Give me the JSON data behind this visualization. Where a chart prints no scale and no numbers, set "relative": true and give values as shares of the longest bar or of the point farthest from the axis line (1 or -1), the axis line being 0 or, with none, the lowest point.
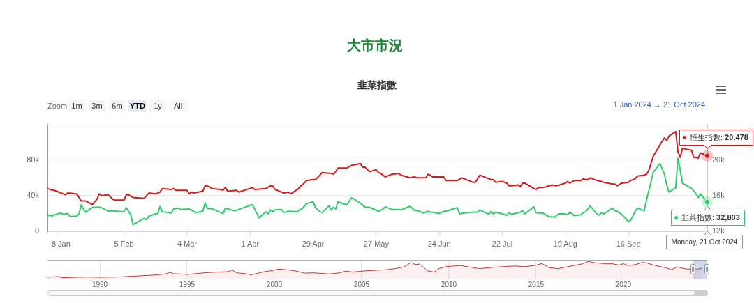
{
  "chart_data": [
    {
      "type": "line",
      "title": "大市市況",
      "subtitle": "韭菜指數",
      "xlim": [
        "2024-01-02",
        "2024-10-21"
      ],
      "xticks": [
        {
          "value": "2024-01-08",
          "label": "8 Jan"
        },
        {
          "value": "2024-02-05",
          "label": "5 Feb"
        },
        {
          "value": "2024-03-04",
          "label": "4 Mar"
        },
        {
          "value": "2024-04-01",
          "label": "1 Apr"
        },
        {
          "value": "2024-04-29",
          "label": "29 Apr"
        },
        {
          "value": "2024-05-27",
          "label": "27 May"
        },
        {
          "value": "2024-06-24",
          "label": "24 Jun"
        },
        {
          "value": "2024-07-22",
          "label": "22 Jul"
        },
        {
          "value": "2024-08-19",
          "label": "19 Aug"
        },
        {
          "value": "2024-09-16",
          "label": "16 Sep"
        }
      ],
      "ylim": [
        0,
        120000
      ],
      "yticks": [
        0,
        {
          "value": 40000,
          "label": "40k"
        },
        {
          "value": 80000,
          "label": "80k"
        }
      ],
      "y2lim": [
        12000,
        24000
      ],
      "y2ticks": [
        {
          "value": 12000,
          "label": "12k"
        },
        {
          "value": 16000,
          "label": "16k"
        },
        {
          "value": 20000,
          "label": "20k"
        }
      ],
      "grid": "y",
      "legend": "right",
      "series": [
        {
          "name": "恒生指數:",
          "color": "#d01c1c",
          "axis": "y2",
          "x": [
            "2024-01-02",
            "2024-01-03",
            "2024-01-05",
            "2024-01-08",
            "2024-01-10",
            "2024-01-11",
            "2024-01-15",
            "2024-01-17",
            "2024-01-18",
            "2024-01-19",
            "2024-01-22",
            "2024-01-24",
            "2024-01-25",
            "2024-01-26",
            "2024-01-29",
            "2024-01-31",
            "2024-02-01",
            "2024-02-05",
            "2024-02-06",
            "2024-02-07",
            "2024-02-09",
            "2024-02-14",
            "2024-02-15",
            "2024-02-16",
            "2024-02-19",
            "2024-02-21",
            "2024-02-22",
            "2024-02-26",
            "2024-02-27",
            "2024-02-28",
            "2024-03-04",
            "2024-03-05",
            "2024-03-06",
            "2024-03-07",
            "2024-03-11",
            "2024-03-12",
            "2024-03-14",
            "2024-03-15",
            "2024-03-19",
            "2024-03-20",
            "2024-03-21",
            "2024-03-22",
            "2024-03-26",
            "2024-03-27",
            "2024-04-02",
            "2024-04-03",
            "2024-04-08",
            "2024-04-10",
            "2024-04-11",
            "2024-04-12",
            "2024-04-16",
            "2024-04-18",
            "2024-04-19",
            "2024-04-22",
            "2024-04-24",
            "2024-04-25",
            "2024-04-26",
            "2024-04-29",
            "2024-04-30",
            "2024-05-02",
            "2024-05-03",
            "2024-05-07",
            "2024-05-08",
            "2024-05-09",
            "2024-05-10",
            "2024-05-14",
            "2024-05-16",
            "2024-05-20",
            "2024-05-21",
            "2024-05-22",
            "2024-05-24",
            "2024-05-27",
            "2024-05-28",
            "2024-05-29",
            "2024-05-31",
            "2024-06-03",
            "2024-06-06",
            "2024-06-07",
            "2024-06-11",
            "2024-06-13",
            "2024-06-14",
            "2024-06-18",
            "2024-06-19",
            "2024-06-20",
            "2024-06-21",
            "2024-06-26",
            "2024-06-27",
            "2024-07-02",
            "2024-07-04",
            "2024-07-05",
            "2024-07-09",
            "2024-07-10",
            "2024-07-12",
            "2024-07-16",
            "2024-07-17",
            "2024-07-18",
            "2024-07-19",
            "2024-07-22",
            "2024-07-24",
            "2024-07-25",
            "2024-07-26",
            "2024-07-29",
            "2024-07-30",
            "2024-07-31",
            "2024-08-01",
            "2024-08-05",
            "2024-08-06",
            "2024-08-07",
            "2024-08-09",
            "2024-08-12",
            "2024-08-13",
            "2024-08-15",
            "2024-08-19",
            "2024-08-20",
            "2024-08-21",
            "2024-08-23",
            "2024-08-26",
            "2024-08-27",
            "2024-08-28",
            "2024-08-29",
            "2024-08-30",
            "2024-09-02",
            "2024-09-04",
            "2024-09-05",
            "2024-09-09",
            "2024-09-10",
            "2024-09-11",
            "2024-09-13",
            "2024-09-16",
            "2024-09-17",
            "2024-09-19",
            "2024-09-20",
            "2024-09-23",
            "2024-09-24",
            "2024-09-25",
            "2024-09-26",
            "2024-09-27",
            "2024-09-30",
            "2024-10-02",
            "2024-10-03",
            "2024-10-04",
            "2024-10-07",
            "2024-10-08",
            "2024-10-09",
            "2024-10-10",
            "2024-10-14",
            "2024-10-15",
            "2024-10-16",
            "2024-10-17",
            "2024-10-18",
            "2024-10-21"
          ],
          "values": [
            16800,
            16700,
            16600,
            16300,
            16100,
            16300,
            16200,
            15400,
            15400,
            15400,
            15000,
            15600,
            16200,
            16000,
            16100,
            15600,
            15500,
            15500,
            16100,
            16100,
            15800,
            15700,
            16000,
            16300,
            16200,
            16400,
            16800,
            16700,
            16800,
            16600,
            16600,
            16200,
            16400,
            16300,
            16500,
            17100,
            17000,
            16800,
            16700,
            16600,
            16900,
            16500,
            16600,
            16400,
            16900,
            16700,
            16800,
            17100,
            17100,
            16700,
            16300,
            16400,
            16200,
            16700,
            17200,
            17400,
            17700,
            17800,
            17800,
            18300,
            18600,
            18500,
            18400,
            18700,
            19100,
            19100,
            19400,
            19600,
            19200,
            19200,
            18700,
            18900,
            18600,
            18500,
            18100,
            18400,
            18500,
            18300,
            18000,
            18100,
            18000,
            18000,
            18400,
            18300,
            18100,
            18100,
            17700,
            17700,
            18000,
            17900,
            17500,
            17500,
            18300,
            17900,
            17800,
            17800,
            17500,
            17600,
            17400,
            17100,
            17100,
            17200,
            17000,
            17400,
            17400,
            16800,
            16700,
            16900,
            16900,
            17100,
            17200,
            17100,
            17400,
            17600,
            17400,
            17700,
            17700,
            17900,
            17800,
            17800,
            18000,
            17700,
            17600,
            17500,
            17300,
            17300,
            17100,
            17400,
            17500,
            17700,
            17900,
            18200,
            18300,
            18400,
            18800,
            19600,
            20400,
            21700,
            22500,
            22200,
            22700,
            23200,
            20900,
            20300,
            21300,
            21100,
            20300,
            20300,
            20200,
            20800,
            20478
          ],
          "value_labels": [
            null,
            null,
            null,
            null,
            null,
            null,
            null,
            null,
            null,
            null,
            null,
            null,
            null,
            null,
            null,
            null,
            null,
            null,
            null,
            null,
            null,
            null,
            null,
            null,
            null,
            null,
            null,
            null,
            null,
            null,
            null,
            null,
            null,
            null,
            null,
            null,
            null,
            null,
            null,
            null,
            null,
            null,
            null,
            null,
            null,
            null,
            null,
            null,
            null,
            null,
            null,
            null,
            null,
            null,
            null,
            null,
            null,
            null,
            null,
            null,
            null,
            null,
            null,
            null,
            null,
            null,
            null,
            null,
            null,
            null,
            null,
            null,
            null,
            null,
            null,
            null,
            null,
            null,
            null,
            null,
            null,
            null,
            null,
            null,
            null,
            null,
            null,
            null,
            null,
            null,
            null,
            null,
            null,
            null,
            null,
            null,
            null,
            null,
            null,
            null,
            null,
            null,
            null,
            null,
            null,
            null,
            null,
            null,
            null,
            null,
            null,
            null,
            null,
            null,
            null,
            null,
            null,
            null,
            null,
            null,
            null,
            null,
            null,
            null,
            null,
            null,
            null,
            null,
            null,
            null,
            null,
            null,
            null,
            null,
            null,
            null,
            null,
            null,
            null,
            null,
            null,
            null,
            null,
            null,
            null,
            null,
            null,
            null,
            null,
            null,
            "20,478"
          ]
        },
        {
          "name": "韭菜指數:",
          "color": "#2fcc6b",
          "x": [
            "2024-01-02",
            "2024-01-03",
            "2024-01-04",
            "2024-01-05",
            "2024-01-08",
            "2024-01-09",
            "2024-01-11",
            "2024-01-12",
            "2024-01-15",
            "2024-01-16",
            "2024-01-17",
            "2024-01-18",
            "2024-01-19",
            "2024-01-22",
            "2024-01-24",
            "2024-01-25",
            "2024-01-26",
            "2024-01-29",
            "2024-01-31",
            "2024-02-02",
            "2024-02-05",
            "2024-02-06",
            "2024-02-07",
            "2024-02-08",
            "2024-02-09",
            "2024-02-14",
            "2024-02-15",
            "2024-02-16",
            "2024-02-19",
            "2024-02-20",
            "2024-02-21",
            "2024-02-22",
            "2024-02-26",
            "2024-02-27",
            "2024-02-29",
            "2024-03-01",
            "2024-03-05",
            "2024-03-06",
            "2024-03-08",
            "2024-03-11",
            "2024-03-12",
            "2024-03-13",
            "2024-03-15",
            "2024-03-18",
            "2024-03-20",
            "2024-03-21",
            "2024-03-25",
            "2024-03-27",
            "2024-04-02",
            "2024-04-03",
            "2024-04-05",
            "2024-04-08",
            "2024-04-09",
            "2024-04-10",
            "2024-04-11",
            "2024-04-12",
            "2024-04-15",
            "2024-04-16",
            "2024-04-18",
            "2024-04-22",
            "2024-04-23",
            "2024-04-24",
            "2024-04-26",
            "2024-04-29",
            "2024-04-30",
            "2024-05-02",
            "2024-05-03",
            "2024-05-06",
            "2024-05-07",
            "2024-05-08",
            "2024-05-09",
            "2024-05-10",
            "2024-05-14",
            "2024-05-16",
            "2024-05-17",
            "2024-05-20",
            "2024-05-22",
            "2024-05-24",
            "2024-05-28",
            "2024-05-30",
            "2024-05-31",
            "2024-06-03",
            "2024-06-06",
            "2024-06-07",
            "2024-06-11",
            "2024-06-13",
            "2024-06-14",
            "2024-06-17",
            "2024-06-19",
            "2024-06-20",
            "2024-06-21",
            "2024-06-24",
            "2024-06-26",
            "2024-06-27",
            "2024-07-02",
            "2024-07-03",
            "2024-07-05",
            "2024-07-09",
            "2024-07-11",
            "2024-07-12",
            "2024-07-16",
            "2024-07-17",
            "2024-07-18",
            "2024-07-19",
            "2024-07-22",
            "2024-07-24",
            "2024-07-25",
            "2024-07-26",
            "2024-07-30",
            "2024-07-31",
            "2024-08-01",
            "2024-08-05",
            "2024-08-06",
            "2024-08-07",
            "2024-08-09",
            "2024-08-12",
            "2024-08-13",
            "2024-08-14",
            "2024-08-16",
            "2024-08-19",
            "2024-08-20",
            "2024-08-21",
            "2024-08-23",
            "2024-08-26",
            "2024-08-27",
            "2024-08-28",
            "2024-08-30",
            "2024-09-02",
            "2024-09-03",
            "2024-09-04",
            "2024-09-05",
            "2024-09-09",
            "2024-09-10",
            "2024-09-11",
            "2024-09-13",
            "2024-09-16",
            "2024-09-17",
            "2024-09-19",
            "2024-09-20",
            "2024-09-23",
            "2024-09-24",
            "2024-09-25",
            "2024-09-26",
            "2024-09-27",
            "2024-09-30",
            "2024-10-02",
            "2024-10-03",
            "2024-10-04",
            "2024-10-07",
            "2024-10-08",
            "2024-10-09",
            "2024-10-10",
            "2024-10-14",
            "2024-10-15",
            "2024-10-16",
            "2024-10-17",
            "2024-10-18",
            "2024-10-21"
          ],
          "values": [
            17000,
            18500,
            17000,
            18500,
            20500,
            19000,
            20000,
            16500,
            17000,
            19500,
            30000,
            24500,
            21500,
            27000,
            27000,
            27000,
            26500,
            22500,
            23000,
            22500,
            22000,
            26500,
            22500,
            18500,
            7500,
            14500,
            13000,
            17000,
            19500,
            20000,
            28000,
            22000,
            20500,
            25000,
            26000,
            24500,
            25000,
            23500,
            21000,
            22500,
            32000,
            25500,
            25500,
            22000,
            20000,
            26000,
            23000,
            24500,
            30000,
            25000,
            15000,
            22000,
            19500,
            24000,
            22000,
            24000,
            24500,
            21000,
            22500,
            22000,
            24500,
            25000,
            31000,
            33000,
            26500,
            22000,
            21000,
            28500,
            24000,
            27000,
            25000,
            33000,
            29500,
            37500,
            36500,
            31500,
            27000,
            27000,
            22500,
            25000,
            27500,
            24500,
            24500,
            24000,
            28000,
            23500,
            23500,
            20500,
            22500,
            21500,
            21500,
            20000,
            22500,
            22500,
            26500,
            19500,
            20500,
            21500,
            21500,
            24000,
            19000,
            22500,
            19500,
            21500,
            19500,
            18000,
            21000,
            19000,
            21500,
            23500,
            19500,
            27500,
            21000,
            20500,
            20500,
            16000,
            16500,
            15500,
            19500,
            19500,
            18500,
            21500,
            17500,
            18500,
            21000,
            22000,
            28500,
            19500,
            18000,
            21000,
            19500,
            26000,
            23000,
            22500,
            19000,
            11000,
            12500,
            22500,
            26000,
            23000,
            35000,
            45000,
            55000,
            66000,
            76000,
            64000,
            52000,
            44000,
            49000,
            82000,
            69000,
            54000,
            48000,
            45500,
            42000,
            38000,
            42000,
            32803
          ],
          "value_labels": [
            null,
            null,
            null,
            null,
            null,
            null,
            null,
            null,
            null,
            null,
            null,
            null,
            null,
            null,
            null,
            null,
            null,
            null,
            null,
            null,
            null,
            null,
            null,
            null,
            null,
            null,
            null,
            null,
            null,
            null,
            null,
            null,
            null,
            null,
            null,
            null,
            null,
            null,
            null,
            null,
            null,
            null,
            null,
            null,
            null,
            null,
            null,
            null,
            null,
            null,
            null,
            null,
            null,
            null,
            null,
            null,
            null,
            null,
            null,
            null,
            null,
            null,
            null,
            null,
            null,
            null,
            null,
            null,
            null,
            null,
            null,
            null,
            null,
            null,
            null,
            null,
            null,
            null,
            null,
            null,
            null,
            null,
            null,
            null,
            null,
            null,
            null,
            null,
            null,
            null,
            null,
            null,
            null,
            null,
            null,
            null,
            null,
            null,
            null,
            null,
            null,
            null,
            null,
            null,
            null,
            null,
            null,
            null,
            null,
            null,
            null,
            null,
            null,
            null,
            null,
            null,
            null,
            null,
            null,
            null,
            null,
            null,
            null,
            null,
            null,
            null,
            null,
            null,
            null,
            null,
            null,
            null,
            null,
            null,
            null,
            null,
            null,
            null,
            null,
            null,
            null,
            null,
            null,
            null,
            null,
            null,
            null,
            null,
            null,
            null,
            null,
            null,
            null,
            null,
            null,
            null,
            null,
            "32,803"
          ]
        }
      ],
      "annotations": [
        "Zoom",
        "1m",
        "3m",
        "6m",
        "YTD",
        "1y",
        "All",
        "1 Jan 2024 → 21 Oct 2024",
        "Monday, 21 Oct 2024"
      ]
    },
    {
      "type": "area",
      "relative": true,
      "color": "#cc3333",
      "grid": "x",
      "xlim": [
        "1987-01-01",
        "2024-10-21"
      ],
      "xticks": [
        {
          "value": "1990",
          "label": "1990"
        },
        {
          "value": "1995",
          "label": "1995"
        },
        {
          "value": "2000",
          "label": "2000"
        },
        {
          "value": "2005",
          "label": "2005"
        },
        {
          "value": "2010",
          "label": "2010"
        },
        {
          "value": "2015",
          "label": "2015"
        },
        {
          "value": "2020",
          "label": "2020"
        }
      ],
      "x": [
        "1987-01",
        "1987-09",
        "1987-11",
        "1988-09",
        "1989-05",
        "1990-01",
        "1990-12",
        "1992-01",
        "1992-10",
        "1993-05",
        "1993-10",
        "1994-01",
        "1994-04",
        "1994-09",
        "1995-01",
        "1996-01",
        "1996-10",
        "1997-05",
        "1997-08",
        "1997-11",
        "1998-06",
        "1998-09",
        "1999-02",
        "1999-06",
        "1999-11",
        "2000-04",
        "2000-09",
        "2001-03",
        "2001-10",
        "2002-04",
        "2003-03",
        "2003-10",
        "2004-02",
        "2004-07",
        "2005-05",
        "2006-06",
        "2006-12",
        "2007-06",
        "2007-11",
        "2008-02",
        "2008-05",
        "2008-08",
        "2008-10",
        "2009-03",
        "2009-06",
        "2009-11",
        "2010-09",
        "2011-10",
        "2012-10",
        "2013-11",
        "2014-05",
        "2014-12",
        "2015-05",
        "2015-10",
        "2016-04",
        "2017-03",
        "2017-08",
        "2018-01",
        "2018-06",
        "2018-12",
        "2019-05",
        "2019-10",
        "2020-01",
        "2020-04",
        "2020-09",
        "2021-02",
        "2021-05",
        "2021-11",
        "2022-06",
        "2022-10",
        "2023-02",
        "2023-06",
        "2023-09",
        "2024-04",
        "2024-07"
      ],
      "values": [
        0.03,
        0.08,
        0,
        0.03,
        0.04,
        0.03,
        0.04,
        0.1,
        0.14,
        0.18,
        0.23,
        0.33,
        0.24,
        0.23,
        0.2,
        0.3,
        0.35,
        0.37,
        0.47,
        0.3,
        0.24,
        0.18,
        0.28,
        0.37,
        0.43,
        0.53,
        0.49,
        0.43,
        0.28,
        0.3,
        0.23,
        0.3,
        0.41,
        0.35,
        0.43,
        0.49,
        0.56,
        0.66,
        0.94,
        0.81,
        0.84,
        0.62,
        0.43,
        0.35,
        0.56,
        0.68,
        0.75,
        0.56,
        0.66,
        0.72,
        0.68,
        0.75,
        0.87,
        0.62,
        0.56,
        0.75,
        0.84,
        1,
        0.91,
        0.87,
        0.87,
        0.78,
        0.87,
        0.75,
        0.81,
        0.94,
        0.91,
        0.75,
        0.62,
        0.49,
        0.66,
        0.58,
        0.53,
        0.53,
        0.58
      ]
    }
  ]
}
